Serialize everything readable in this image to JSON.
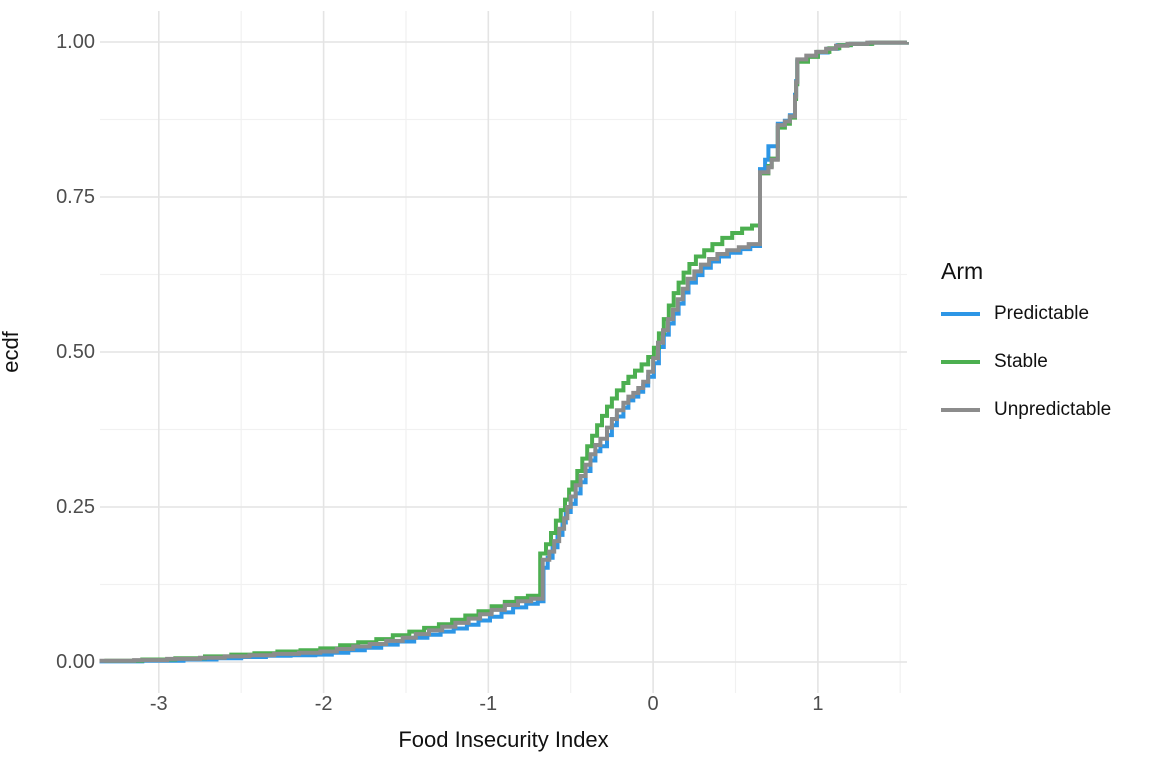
{
  "chart_data": {
    "type": "line",
    "subtype": "ecdf-step",
    "title": "",
    "xlabel": "Food Insecurity Index",
    "ylabel": "ecdf",
    "legend_title": "Arm",
    "legend_position": "right",
    "grid": "on",
    "xlim": [
      -3.357,
      1.541
    ],
    "ylim": [
      -0.05,
      1.05
    ],
    "x_ticks": [
      -3,
      -2,
      -1,
      0,
      1
    ],
    "x_tick_labels": [
      "-3",
      "-2",
      "-1",
      "0",
      "1"
    ],
    "x_minor_ticks": [
      -2.5,
      -1.5,
      -0.5,
      0.5,
      1.5
    ],
    "y_ticks": [
      0,
      0.25,
      0.5,
      0.75,
      1
    ],
    "y_tick_labels": [
      "0.00",
      "0.25",
      "0.50",
      "0.75",
      "1.00"
    ],
    "y_minor_ticks": [
      0.125,
      0.375,
      0.625,
      0.875
    ],
    "colors": {
      "background": "#ffffff",
      "grid_major": "#e4e4e4",
      "grid_minor": "#f1f1f1",
      "tick_label": "#4d4d4d",
      "axis_title": "#111111",
      "legend_text": "#111111"
    },
    "series": [
      {
        "name": "Predictable",
        "color": "#2d96e6",
        "points": [
          [
            -3.36,
            0.001
          ],
          [
            -3.1,
            0.002
          ],
          [
            -2.85,
            0.004
          ],
          [
            -2.65,
            0.006
          ],
          [
            -2.5,
            0.008
          ],
          [
            -2.35,
            0.01
          ],
          [
            -2.2,
            0.011
          ],
          [
            -2.05,
            0.012
          ],
          [
            -1.95,
            0.015
          ],
          [
            -1.85,
            0.019
          ],
          [
            -1.75,
            0.023
          ],
          [
            -1.65,
            0.028
          ],
          [
            -1.55,
            0.033
          ],
          [
            -1.45,
            0.039
          ],
          [
            -1.37,
            0.044
          ],
          [
            -1.29,
            0.049
          ],
          [
            -1.21,
            0.054
          ],
          [
            -1.13,
            0.06
          ],
          [
            -1.06,
            0.067
          ],
          [
            -0.99,
            0.073
          ],
          [
            -0.92,
            0.08
          ],
          [
            -0.85,
            0.088
          ],
          [
            -0.77,
            0.094
          ],
          [
            -0.7,
            0.098
          ],
          [
            -0.665,
            0.1
          ],
          [
            -0.665,
            0.152
          ],
          [
            -0.64,
            0.168
          ],
          [
            -0.61,
            0.185
          ],
          [
            -0.58,
            0.205
          ],
          [
            -0.55,
            0.225
          ],
          [
            -0.53,
            0.242
          ],
          [
            -0.5,
            0.255
          ],
          [
            -0.47,
            0.272
          ],
          [
            -0.44,
            0.29
          ],
          [
            -0.41,
            0.308
          ],
          [
            -0.38,
            0.325
          ],
          [
            -0.35,
            0.34
          ],
          [
            -0.32,
            0.348
          ],
          [
            -0.28,
            0.366
          ],
          [
            -0.25,
            0.382
          ],
          [
            -0.22,
            0.396
          ],
          [
            -0.18,
            0.41
          ],
          [
            -0.15,
            0.422
          ],
          [
            -0.12,
            0.428
          ],
          [
            -0.09,
            0.436
          ],
          [
            -0.06,
            0.446
          ],
          [
            -0.03,
            0.46
          ],
          [
            0.005,
            0.482
          ],
          [
            0.035,
            0.508
          ],
          [
            0.065,
            0.528
          ],
          [
            0.095,
            0.546
          ],
          [
            0.125,
            0.562
          ],
          [
            0.155,
            0.578
          ],
          [
            0.185,
            0.596
          ],
          [
            0.215,
            0.612
          ],
          [
            0.26,
            0.624
          ],
          [
            0.3,
            0.636
          ],
          [
            0.35,
            0.646
          ],
          [
            0.4,
            0.654
          ],
          [
            0.46,
            0.66
          ],
          [
            0.53,
            0.666
          ],
          [
            0.59,
            0.671
          ],
          [
            0.649,
            0.675
          ],
          [
            0.649,
            0.795
          ],
          [
            0.68,
            0.81
          ],
          [
            0.7,
            0.832
          ],
          [
            0.757,
            0.868
          ],
          [
            0.8,
            0.873
          ],
          [
            0.83,
            0.882
          ],
          [
            0.861,
            0.915
          ],
          [
            0.868,
            0.937
          ],
          [
            0.875,
            0.97
          ],
          [
            0.94,
            0.977
          ],
          [
            1.0,
            0.983
          ],
          [
            1.06,
            0.989
          ],
          [
            1.12,
            0.995
          ],
          [
            1.2,
            0.997
          ],
          [
            1.32,
            0.999
          ],
          [
            1.54,
            1.0
          ]
        ]
      },
      {
        "name": "Stable",
        "color": "#4caf50",
        "points": [
          [
            -3.33,
            0.002
          ],
          [
            -3.1,
            0.004
          ],
          [
            -2.9,
            0.006
          ],
          [
            -2.72,
            0.009
          ],
          [
            -2.56,
            0.012
          ],
          [
            -2.42,
            0.014
          ],
          [
            -2.28,
            0.017
          ],
          [
            -2.14,
            0.019
          ],
          [
            -2.02,
            0.022
          ],
          [
            -1.9,
            0.027
          ],
          [
            -1.79,
            0.032
          ],
          [
            -1.68,
            0.037
          ],
          [
            -1.58,
            0.043
          ],
          [
            -1.48,
            0.049
          ],
          [
            -1.39,
            0.055
          ],
          [
            -1.3,
            0.061
          ],
          [
            -1.22,
            0.068
          ],
          [
            -1.14,
            0.075
          ],
          [
            -1.06,
            0.082
          ],
          [
            -0.98,
            0.09
          ],
          [
            -0.9,
            0.097
          ],
          [
            -0.83,
            0.103
          ],
          [
            -0.76,
            0.107
          ],
          [
            -0.685,
            0.11
          ],
          [
            -0.685,
            0.175
          ],
          [
            -0.65,
            0.19
          ],
          [
            -0.62,
            0.208
          ],
          [
            -0.59,
            0.228
          ],
          [
            -0.56,
            0.245
          ],
          [
            -0.535,
            0.262
          ],
          [
            -0.51,
            0.278
          ],
          [
            -0.49,
            0.29
          ],
          [
            -0.46,
            0.308
          ],
          [
            -0.43,
            0.328
          ],
          [
            -0.4,
            0.348
          ],
          [
            -0.37,
            0.365
          ],
          [
            -0.34,
            0.382
          ],
          [
            -0.31,
            0.397
          ],
          [
            -0.28,
            0.412
          ],
          [
            -0.25,
            0.425
          ],
          [
            -0.22,
            0.438
          ],
          [
            -0.18,
            0.45
          ],
          [
            -0.15,
            0.46
          ],
          [
            -0.11,
            0.47
          ],
          [
            -0.07,
            0.48
          ],
          [
            -0.03,
            0.492
          ],
          [
            0.005,
            0.507
          ],
          [
            0.035,
            0.53
          ],
          [
            0.065,
            0.553
          ],
          [
            0.095,
            0.575
          ],
          [
            0.125,
            0.595
          ],
          [
            0.155,
            0.612
          ],
          [
            0.185,
            0.628
          ],
          [
            0.22,
            0.642
          ],
          [
            0.26,
            0.654
          ],
          [
            0.31,
            0.664
          ],
          [
            0.36,
            0.674
          ],
          [
            0.42,
            0.684
          ],
          [
            0.48,
            0.692
          ],
          [
            0.54,
            0.699
          ],
          [
            0.6,
            0.704
          ],
          [
            0.649,
            0.706
          ],
          [
            0.649,
            0.788
          ],
          [
            0.7,
            0.8
          ],
          [
            0.72,
            0.812
          ],
          [
            0.757,
            0.862
          ],
          [
            0.8,
            0.868
          ],
          [
            0.83,
            0.878
          ],
          [
            0.861,
            0.908
          ],
          [
            0.868,
            0.932
          ],
          [
            0.875,
            0.968
          ],
          [
            0.94,
            0.976
          ],
          [
            1.0,
            0.984
          ],
          [
            1.07,
            0.99
          ],
          [
            1.13,
            0.995
          ],
          [
            1.2,
            0.997
          ],
          [
            1.33,
            0.999
          ],
          [
            1.54,
            1.0
          ]
        ]
      },
      {
        "name": "Unpredictable",
        "color": "#8c8c8c",
        "points": [
          [
            -3.36,
            0.002
          ],
          [
            -3.15,
            0.003
          ],
          [
            -2.95,
            0.005
          ],
          [
            -2.75,
            0.007
          ],
          [
            -2.6,
            0.009
          ],
          [
            -2.45,
            0.011
          ],
          [
            -2.3,
            0.013
          ],
          [
            -2.15,
            0.015
          ],
          [
            -2.02,
            0.017
          ],
          [
            -1.92,
            0.021
          ],
          [
            -1.82,
            0.025
          ],
          [
            -1.72,
            0.029
          ],
          [
            -1.62,
            0.034
          ],
          [
            -1.52,
            0.039
          ],
          [
            -1.44,
            0.045
          ],
          [
            -1.36,
            0.051
          ],
          [
            -1.28,
            0.057
          ],
          [
            -1.2,
            0.063
          ],
          [
            -1.12,
            0.07
          ],
          [
            -1.05,
            0.077
          ],
          [
            -0.98,
            0.084
          ],
          [
            -0.9,
            0.092
          ],
          [
            -0.82,
            0.098
          ],
          [
            -0.74,
            0.102
          ],
          [
            -0.67,
            0.105
          ],
          [
            -0.67,
            0.165
          ],
          [
            -0.63,
            0.178
          ],
          [
            -0.6,
            0.195
          ],
          [
            -0.57,
            0.215
          ],
          [
            -0.54,
            0.232
          ],
          [
            -0.52,
            0.25
          ],
          [
            -0.5,
            0.267
          ],
          [
            -0.47,
            0.285
          ],
          [
            -0.44,
            0.3
          ],
          [
            -0.41,
            0.318
          ],
          [
            -0.38,
            0.335
          ],
          [
            -0.35,
            0.35
          ],
          [
            -0.32,
            0.36
          ],
          [
            -0.28,
            0.378
          ],
          [
            -0.25,
            0.392
          ],
          [
            -0.22,
            0.406
          ],
          [
            -0.18,
            0.418
          ],
          [
            -0.15,
            0.428
          ],
          [
            -0.12,
            0.434
          ],
          [
            -0.09,
            0.442
          ],
          [
            -0.06,
            0.452
          ],
          [
            -0.03,
            0.468
          ],
          [
            0.0,
            0.49
          ],
          [
            0.03,
            0.515
          ],
          [
            0.06,
            0.535
          ],
          [
            0.09,
            0.553
          ],
          [
            0.12,
            0.568
          ],
          [
            0.15,
            0.585
          ],
          [
            0.18,
            0.602
          ],
          [
            0.21,
            0.618
          ],
          [
            0.25,
            0.63
          ],
          [
            0.29,
            0.641
          ],
          [
            0.34,
            0.65
          ],
          [
            0.39,
            0.658
          ],
          [
            0.45,
            0.664
          ],
          [
            0.52,
            0.669
          ],
          [
            0.58,
            0.674
          ],
          [
            0.649,
            0.678
          ],
          [
            0.649,
            0.79
          ],
          [
            0.7,
            0.798
          ],
          [
            0.72,
            0.81
          ],
          [
            0.757,
            0.866
          ],
          [
            0.8,
            0.872
          ],
          [
            0.83,
            0.88
          ],
          [
            0.861,
            0.912
          ],
          [
            0.868,
            0.935
          ],
          [
            0.875,
            0.972
          ],
          [
            0.93,
            0.978
          ],
          [
            0.99,
            0.984
          ],
          [
            1.05,
            0.989
          ],
          [
            1.11,
            0.994
          ],
          [
            1.18,
            0.997
          ],
          [
            1.3,
            0.999
          ],
          [
            1.54,
            1.0
          ]
        ]
      }
    ]
  }
}
